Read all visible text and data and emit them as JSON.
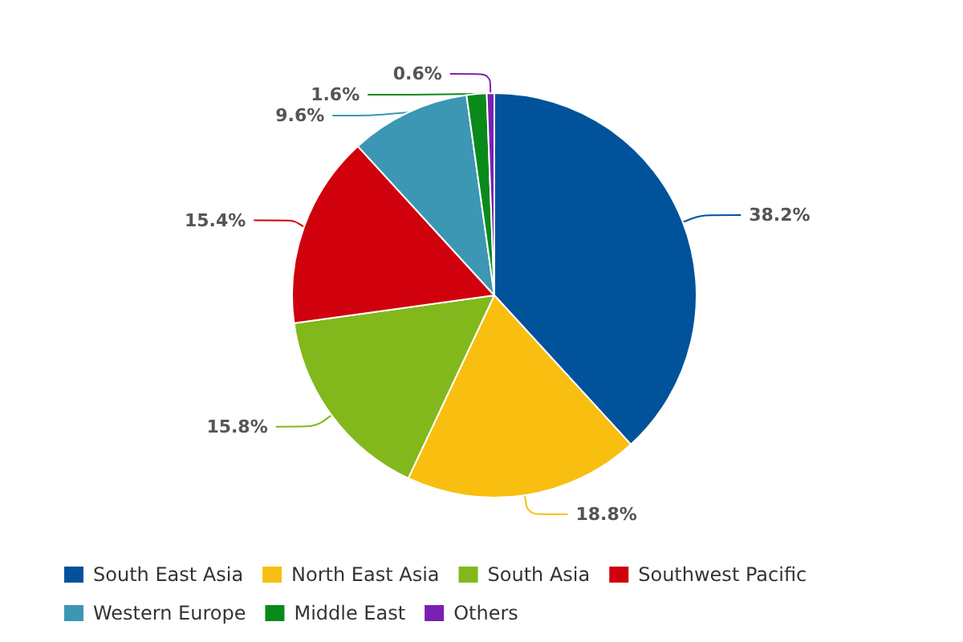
{
  "chart_data": {
    "type": "pie",
    "categories": [
      "South East Asia",
      "North East Asia",
      "South Asia",
      "Southwest Pacific",
      "Western Europe",
      "Middle East",
      "Others"
    ],
    "values": [
      38.2,
      18.8,
      15.8,
      15.4,
      9.6,
      1.6,
      0.6
    ],
    "value_labels": [
      "38.2%",
      "18.8%",
      "15.8%",
      "15.4%",
      "9.6%",
      "1.6%",
      "0.6%"
    ],
    "colors": [
      "#00529b",
      "#f8bf11",
      "#82b81c",
      "#d0000d",
      "#3b97b3",
      "#0a8a1a",
      "#7b1fb3"
    ],
    "legend": "bottom"
  }
}
